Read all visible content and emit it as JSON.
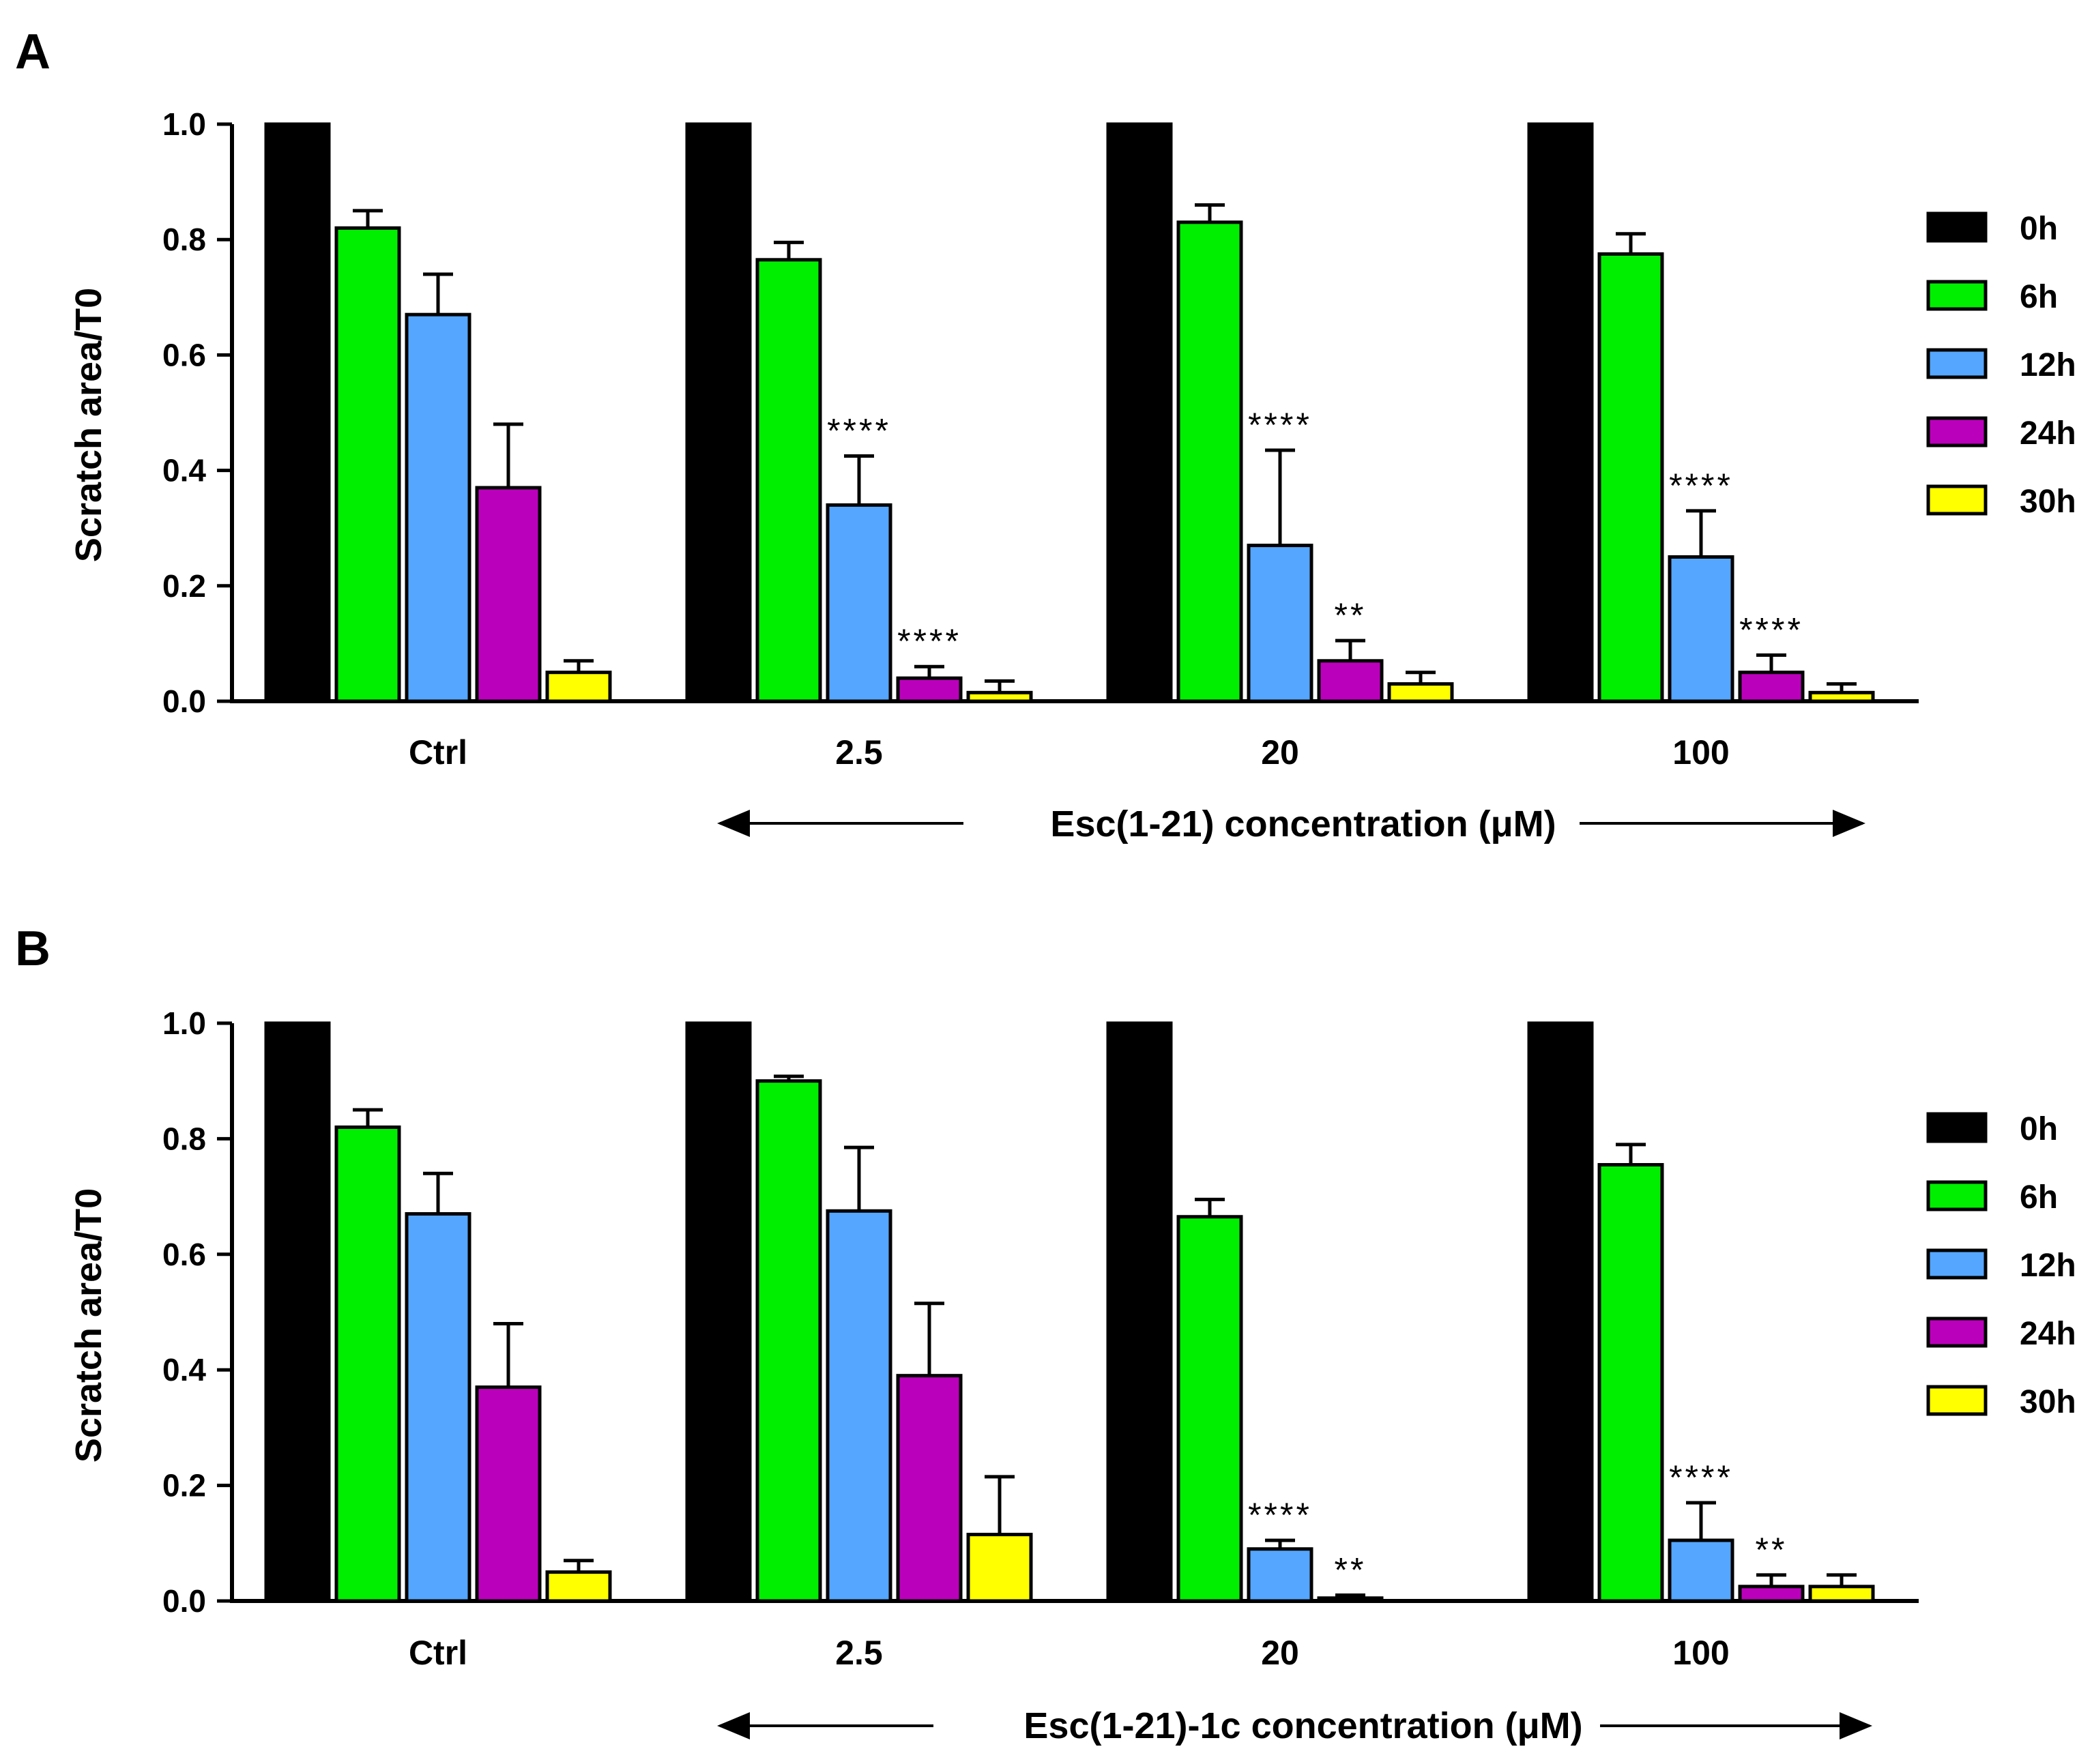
{
  "chart_data": [
    {
      "type": "bar",
      "panel_label": "A",
      "categories": [
        "Ctrl",
        "2.5",
        "20",
        "100"
      ],
      "xlabel": "Esc(1-21) concentration (μM)",
      "ylabel": "Scratch area/T0",
      "ylim": [
        0,
        1.0
      ],
      "yticks": [
        "0.0",
        "0.2",
        "0.4",
        "0.6",
        "0.8",
        "1.0"
      ],
      "legend_position": "right",
      "series": [
        {
          "name": "0h",
          "color": "#000000",
          "values": [
            1.0,
            1.0,
            1.0,
            1.0
          ],
          "errors": [
            0,
            0,
            0,
            0
          ],
          "sig": [
            "",
            "",
            "",
            ""
          ]
        },
        {
          "name": "6h",
          "color": "#00ee00",
          "values": [
            0.82,
            0.765,
            0.83,
            0.775
          ],
          "errors": [
            0.03,
            0.03,
            0.03,
            0.035
          ],
          "sig": [
            "",
            "",
            "",
            ""
          ]
        },
        {
          "name": "12h",
          "color": "#55a6ff",
          "values": [
            0.67,
            0.34,
            0.27,
            0.25
          ],
          "errors": [
            0.07,
            0.085,
            0.165,
            0.08
          ],
          "sig": [
            "",
            "****",
            "****",
            "****"
          ]
        },
        {
          "name": "24h",
          "color": "#bb00bb",
          "values": [
            0.37,
            0.04,
            0.07,
            0.05
          ],
          "errors": [
            0.11,
            0.02,
            0.035,
            0.03
          ],
          "sig": [
            "",
            "****",
            "**",
            "****"
          ]
        },
        {
          "name": "30h",
          "color": "#ffff00",
          "values": [
            0.05,
            0.015,
            0.03,
            0.015
          ],
          "errors": [
            0.02,
            0.02,
            0.02,
            0.015
          ],
          "sig": [
            "",
            "",
            "",
            ""
          ]
        }
      ]
    },
    {
      "type": "bar",
      "panel_label": "B",
      "categories": [
        "Ctrl",
        "2.5",
        "20",
        "100"
      ],
      "xlabel": "Esc(1-21)-1c concentration (μM)",
      "ylabel": "Scratch area/T0",
      "ylim": [
        0,
        1.0
      ],
      "yticks": [
        "0.0",
        "0.2",
        "0.4",
        "0.6",
        "0.8",
        "1.0"
      ],
      "legend_position": "right",
      "series": [
        {
          "name": "0h",
          "color": "#000000",
          "values": [
            1.0,
            1.0,
            1.0,
            1.0
          ],
          "errors": [
            0,
            0,
            0,
            0
          ],
          "sig": [
            "",
            "",
            "",
            ""
          ]
        },
        {
          "name": "6h",
          "color": "#00ee00",
          "values": [
            0.82,
            0.9,
            0.665,
            0.755
          ],
          "errors": [
            0.03,
            0.008,
            0.03,
            0.035
          ],
          "sig": [
            "",
            "",
            "",
            ""
          ]
        },
        {
          "name": "12h",
          "color": "#55a6ff",
          "values": [
            0.67,
            0.675,
            0.09,
            0.105
          ],
          "errors": [
            0.07,
            0.11,
            0.015,
            0.065
          ],
          "sig": [
            "",
            "",
            "****",
            "****"
          ]
        },
        {
          "name": "24h",
          "color": "#bb00bb",
          "values": [
            0.37,
            0.39,
            0.005,
            0.025
          ],
          "errors": [
            0.11,
            0.125,
            0.005,
            0.02
          ],
          "sig": [
            "",
            "",
            "**",
            "**"
          ]
        },
        {
          "name": "30h",
          "color": "#ffff00",
          "values": [
            0.05,
            0.115,
            0.0,
            0.025
          ],
          "errors": [
            0.02,
            0.1,
            0,
            0.02
          ],
          "sig": [
            "",
            "",
            "",
            ""
          ]
        }
      ]
    }
  ]
}
